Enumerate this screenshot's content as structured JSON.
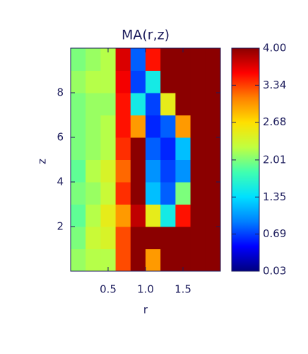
{
  "chart_data": {
    "type": "heatmap",
    "title": "MA(r,z)",
    "x_label": "r",
    "y_label": "z",
    "x": [
      0.1,
      0.3,
      0.5,
      0.7,
      0.9,
      1.1,
      1.3,
      1.5,
      1.7,
      1.9
    ],
    "y": [
      0.5,
      1.5,
      2.5,
      3.5,
      4.5,
      5.5,
      6.5,
      7.5,
      8.5,
      9.5
    ],
    "values": [
      [
        2.1,
        2.2,
        2.2,
        3.3,
        4.0,
        3.0,
        4.0,
        4.0,
        4.0,
        4.0
      ],
      [
        2.0,
        2.3,
        2.4,
        3.3,
        4.0,
        4.0,
        4.0,
        4.0,
        4.0,
        4.0
      ],
      [
        1.9,
        2.2,
        2.5,
        3.0,
        3.8,
        2.5,
        1.5,
        3.5,
        4.0,
        4.0
      ],
      [
        2.0,
        2.1,
        2.3,
        3.4,
        4.0,
        1.2,
        0.8,
        2.0,
        4.0,
        4.0
      ],
      [
        1.9,
        2.2,
        2.4,
        3.2,
        4.0,
        1.0,
        0.7,
        1.0,
        4.0,
        4.0
      ],
      [
        2.0,
        2.1,
        2.2,
        3.4,
        4.0,
        0.8,
        0.6,
        1.2,
        4.0,
        4.0
      ],
      [
        2.0,
        2.1,
        2.2,
        3.5,
        3.0,
        0.6,
        0.8,
        3.0,
        4.0,
        4.0
      ],
      [
        2.0,
        2.1,
        2.1,
        3.5,
        1.5,
        0.7,
        2.5,
        4.0,
        4.0,
        4.0
      ],
      [
        2.1,
        2.2,
        2.2,
        3.6,
        0.7,
        1.5,
        4.0,
        4.0,
        4.0,
        4.0
      ],
      [
        2.0,
        2.1,
        2.2,
        3.7,
        0.8,
        3.5,
        4.0,
        4.0,
        4.0,
        4.0
      ]
    ],
    "xlim": [
      0,
      2.0
    ],
    "ylim": [
      0,
      10
    ],
    "xticks": [
      0.5,
      {
        "value": 1.0,
        "label": "1.0"
      },
      1.5
    ],
    "yticks": [
      2,
      4,
      6,
      8
    ],
    "clim": [
      0.03,
      4.0
    ],
    "cticks": [
      0.03,
      0.69,
      1.35,
      2.01,
      2.68,
      3.34,
      {
        "value": 4.0,
        "label": "4.00"
      }
    ],
    "colormap": [
      "#00007f",
      "#0000ff",
      "#0080ff",
      "#00e0ff",
      "#40ffb0",
      "#c0ff40",
      "#ffe000",
      "#ff8000",
      "#ff0000",
      "#8b0000"
    ]
  }
}
